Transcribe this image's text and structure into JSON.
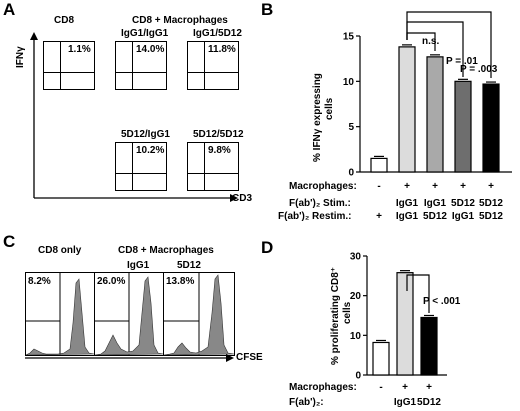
{
  "panel_a": {
    "letter": "A",
    "y_axis": "IFNγ",
    "x_axis": "CD3",
    "col1_header": "CD8",
    "col23_header": "CD8 + Macrophages",
    "plots": [
      {
        "label": "",
        "pct": "1.1%"
      },
      {
        "label": "IgG1/IgG1",
        "pct": "14.0%"
      },
      {
        "label": "IgG1/5D12",
        "pct": "11.8%"
      },
      {
        "label": "5D12/IgG1",
        "pct": "10.2%"
      },
      {
        "label": "5D12/5D12",
        "pct": "9.8%"
      }
    ]
  },
  "panel_b": {
    "letter": "B",
    "ylabel_line1": "% IFNγ expressing",
    "ylabel_line2": "cells",
    "ns_label": "n.s.",
    "p1": "P = .01",
    "p2": "P = .003",
    "row1_label": "Macrophages:",
    "row2_label": "F(ab')₂ Stim.:",
    "row3_label": "F(ab')₂ Restim.:",
    "row1": [
      "-",
      "+",
      "+",
      "+",
      "+"
    ],
    "row2": [
      "",
      "IgG1",
      "IgG1",
      "5D12",
      "5D12"
    ],
    "row3": [
      "+",
      "IgG1",
      "5D12",
      "IgG1",
      "5D12"
    ]
  },
  "panel_c": {
    "letter": "C",
    "col1_header": "CD8 only",
    "col23_header": "CD8 + Macrophages",
    "x_axis": "CFSE",
    "plots": [
      {
        "label": "",
        "pct": "8.2%"
      },
      {
        "label": "IgG1",
        "pct": "26.0%"
      },
      {
        "label": "5D12",
        "pct": "13.8%"
      }
    ]
  },
  "panel_d": {
    "letter": "D",
    "ylabel_line1": "% proliferating CD8⁺",
    "ylabel_line2": "cells",
    "p1": "P < .001",
    "row1_label": "Macrophages:",
    "row2_label": "F(ab')₂:",
    "row1": [
      "-",
      "+",
      "+"
    ],
    "row2": [
      "",
      "IgG1",
      "5D12"
    ]
  },
  "chart_data": [
    {
      "type": "bar",
      "categories": [
        "1",
        "2",
        "3",
        "4",
        "5"
      ],
      "values": [
        1.5,
        13.8,
        12.7,
        10.0,
        9.7
      ],
      "colors": [
        "#ffffff",
        "#dcdcdc",
        "#a9a9a9",
        "#6e6e6e",
        "#000000"
      ],
      "ylim": [
        0,
        15
      ],
      "yticks": [
        0,
        5,
        10,
        15
      ]
    },
    {
      "type": "bar",
      "categories": [
        "1",
        "2",
        "3"
      ],
      "values": [
        8.2,
        25.8,
        14.5
      ],
      "colors": [
        "#ffffff",
        "#dcdcdc",
        "#000000"
      ],
      "ylim": [
        0,
        30
      ],
      "yticks": [
        0,
        10,
        20,
        30
      ]
    }
  ]
}
